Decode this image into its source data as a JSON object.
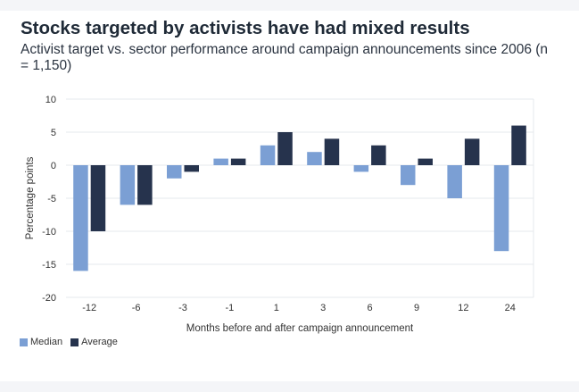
{
  "chart_data": {
    "type": "bar",
    "title": "Stocks targeted by activists have had mixed results",
    "subtitle": "Activist target vs. sector performance around campaign announcements since 2006 (n = 1,150)",
    "xlabel": "Months before and after campaign announcement",
    "ylabel": "Percentage points",
    "ylim": [
      -20,
      10
    ],
    "yticks": [
      10,
      5,
      0,
      -5,
      -10,
      -15,
      -20
    ],
    "categories": [
      "-12",
      "-6",
      "-3",
      "-1",
      "1",
      "3",
      "6",
      "9",
      "12",
      "24"
    ],
    "series": [
      {
        "name": "Median",
        "color": "#7b9fd4",
        "values": [
          -16,
          -6,
          -2,
          1,
          3,
          2,
          -1,
          -3,
          -5,
          -13
        ]
      },
      {
        "name": "Average",
        "color": "#26334d",
        "values": [
          -10,
          -6,
          -1,
          1,
          5,
          4,
          3,
          1,
          4,
          6
        ]
      }
    ],
    "grid": true,
    "legend": "bottom-left"
  }
}
